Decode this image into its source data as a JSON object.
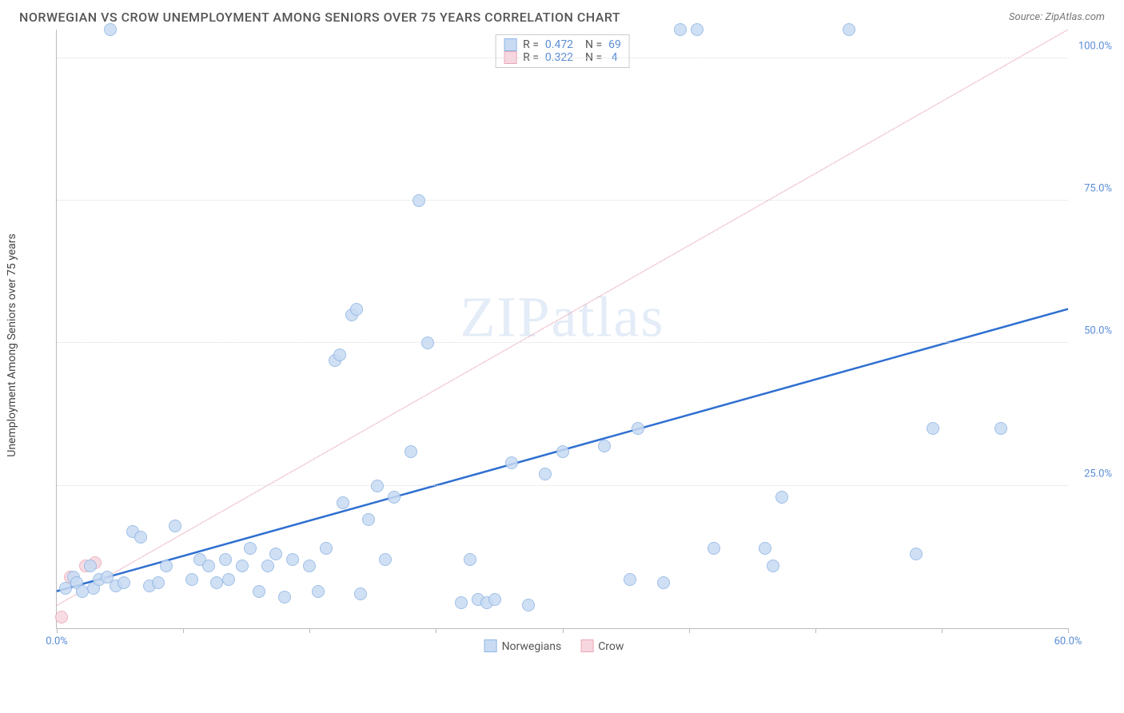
{
  "title": "NORWEGIAN VS CROW UNEMPLOYMENT AMONG SENIORS OVER 75 YEARS CORRELATION CHART",
  "source_label": "Source: ZipAtlas.com",
  "y_axis_label": "Unemployment Among Seniors over 75 years",
  "watermark_a": "ZIP",
  "watermark_b": "atlas",
  "chart": {
    "type": "scatter",
    "background_color": "#ffffff",
    "grid_color": "#dddddd",
    "axis_color": "#bbbbbb",
    "xlim": [
      0,
      60
    ],
    "ylim": [
      0,
      105
    ],
    "x_ticks": [
      0,
      7.5,
      15,
      22.5,
      30,
      37.5,
      45,
      52.5,
      60
    ],
    "x_tick_labels": {
      "0": "0.0%",
      "60": "60.0%"
    },
    "y_ticks": [
      25,
      50,
      75,
      100
    ],
    "y_tick_labels": {
      "25": "25.0%",
      "50": "50.0%",
      "75": "75.0%",
      "100": "100.0%"
    },
    "marker_radius": 8,
    "marker_stroke_width": 1.5,
    "label_fontsize": 13,
    "label_color": "#5b8dd6",
    "series": [
      {
        "name": "Norwegians",
        "fill": "#c8dbf3",
        "stroke": "#8fb5e4",
        "trend_color": "#2f6fd0",
        "trend_width": 2.5,
        "trend_dash": "none",
        "trend_start": [
          0,
          6.5
        ],
        "trend_end": [
          60,
          56
        ],
        "points": [
          [
            0.5,
            7
          ],
          [
            1,
            9
          ],
          [
            1.2,
            8
          ],
          [
            1.5,
            6.5
          ],
          [
            2,
            11
          ],
          [
            2.2,
            7
          ],
          [
            2.5,
            8.5
          ],
          [
            3,
            9
          ],
          [
            3.2,
            105
          ],
          [
            3.5,
            7.5
          ],
          [
            4,
            8
          ],
          [
            4.5,
            17
          ],
          [
            5,
            16
          ],
          [
            5.5,
            7.5
          ],
          [
            6,
            8
          ],
          [
            6.5,
            11
          ],
          [
            7,
            18
          ],
          [
            8,
            8.5
          ],
          [
            8.5,
            12
          ],
          [
            9,
            11
          ],
          [
            9.5,
            8
          ],
          [
            10,
            12
          ],
          [
            10.2,
            8.5
          ],
          [
            11,
            11
          ],
          [
            11.5,
            14
          ],
          [
            12,
            6.5
          ],
          [
            12.5,
            11
          ],
          [
            13,
            13
          ],
          [
            13.5,
            5.5
          ],
          [
            14,
            12
          ],
          [
            15,
            11
          ],
          [
            15.5,
            6.5
          ],
          [
            16,
            14
          ],
          [
            16.5,
            47
          ],
          [
            16.8,
            48
          ],
          [
            17,
            22
          ],
          [
            17.5,
            55
          ],
          [
            17.8,
            56
          ],
          [
            18,
            6
          ],
          [
            18.5,
            19
          ],
          [
            19,
            25
          ],
          [
            19.5,
            12
          ],
          [
            20,
            23
          ],
          [
            21,
            31
          ],
          [
            21.5,
            75
          ],
          [
            22,
            50
          ],
          [
            24,
            4.5
          ],
          [
            24.5,
            12
          ],
          [
            25,
            5
          ],
          [
            25.5,
            4.5
          ],
          [
            26,
            5
          ],
          [
            27,
            29
          ],
          [
            28,
            4
          ],
          [
            29,
            27
          ],
          [
            30,
            31
          ],
          [
            32.5,
            32
          ],
          [
            34,
            8.5
          ],
          [
            34.5,
            35
          ],
          [
            36,
            8
          ],
          [
            37,
            105
          ],
          [
            38,
            105
          ],
          [
            39,
            14
          ],
          [
            42,
            14
          ],
          [
            42.5,
            11
          ],
          [
            43,
            23
          ],
          [
            47,
            105
          ],
          [
            51,
            13
          ],
          [
            52,
            35
          ],
          [
            56,
            35
          ]
        ]
      },
      {
        "name": "Crow",
        "fill": "#f7d7df",
        "stroke": "#e8a8b8",
        "trend_color": "#e8a8b8",
        "trend_width": 1.5,
        "trend_dash": "5,5",
        "trend_start": [
          0,
          4
        ],
        "trend_end": [
          60,
          105
        ],
        "points": [
          [
            0.3,
            2
          ],
          [
            0.8,
            9
          ],
          [
            1.7,
            11
          ],
          [
            2.3,
            11.5
          ]
        ]
      }
    ]
  },
  "stats": [
    {
      "series": "Norwegians",
      "R": "0.472",
      "N": "69"
    },
    {
      "series": "Crow",
      "R": "0.322",
      "N": "4"
    }
  ],
  "legend": [
    {
      "label": "Norwegians",
      "fill": "#c8dbf3",
      "stroke": "#8fb5e4"
    },
    {
      "label": "Crow",
      "fill": "#f7d7df",
      "stroke": "#e8a8b8"
    }
  ]
}
